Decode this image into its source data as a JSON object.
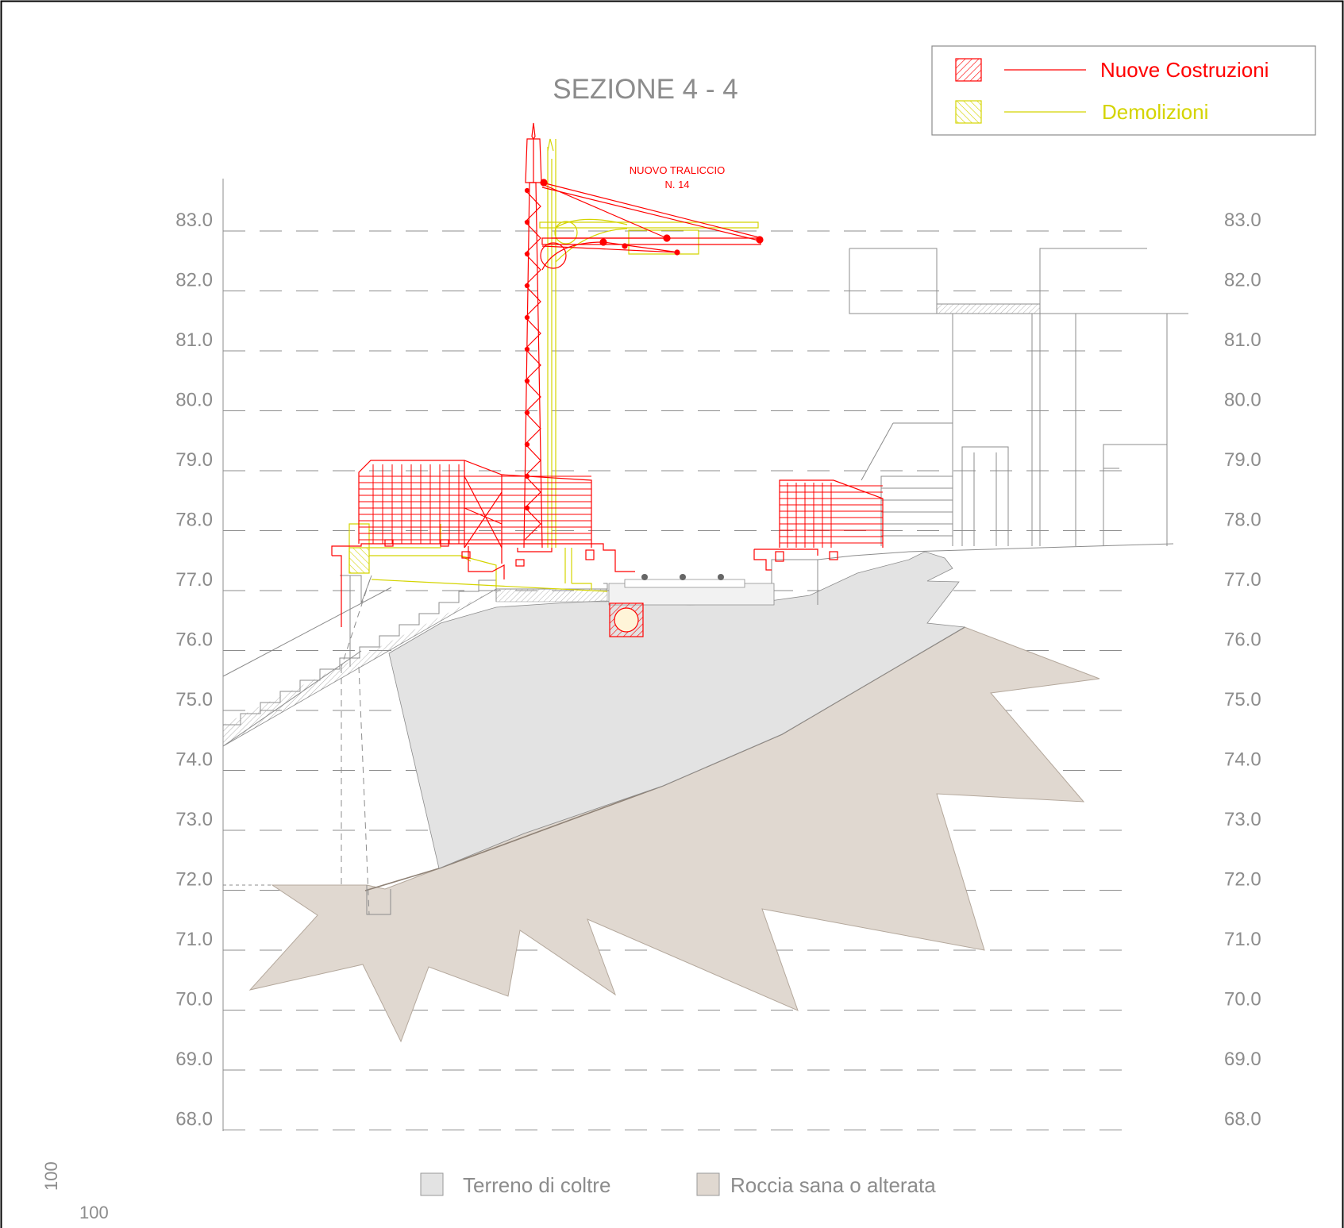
{
  "title": "SEZIONE 4 - 4",
  "legend": {
    "items": [
      {
        "label": "Nuove Costruzioni",
        "color": "#ff0000",
        "hatch": "diag-up"
      },
      {
        "label": "Demolizioni",
        "color": "#d4d400",
        "hatch": "diag-down"
      }
    ]
  },
  "tower_label": {
    "line1": "NUOVO TRALICCIO",
    "line2": "N. 14"
  },
  "elevation_labels": [
    "83.0",
    "82.0",
    "81.0",
    "80.0",
    "79.0",
    "78.0",
    "77.0",
    "76.0",
    "75.0",
    "74.0",
    "73.0",
    "72.0",
    "71.0",
    "70.0",
    "69.0",
    "68.0"
  ],
  "soil_legend": [
    {
      "label": "Terreno di coltre",
      "color": "#e3e3e3"
    },
    {
      "label": "Roccia sana o alterata",
      "color": "#e0d8d0"
    }
  ],
  "scale": {
    "vertical": "100",
    "horizontal": "100"
  },
  "colors": {
    "new": "#ff0000",
    "demolition": "#d4d400",
    "existing": "#8c8c8c",
    "soil": "#e3e3e3",
    "rock": "#e0d8d0",
    "rock_edge": "#a89a8c"
  }
}
